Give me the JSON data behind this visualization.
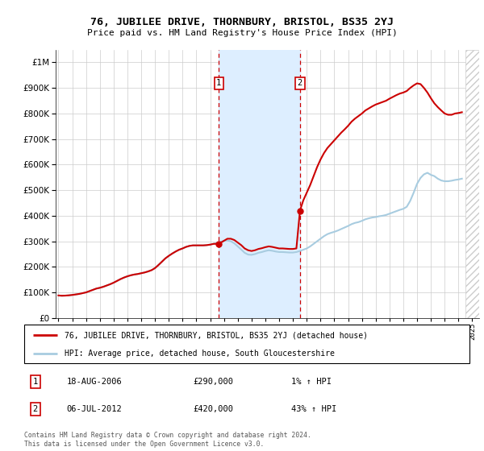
{
  "title": "76, JUBILEE DRIVE, THORNBURY, BRISTOL, BS35 2YJ",
  "subtitle": "Price paid vs. HM Land Registry's House Price Index (HPI)",
  "ytick_values": [
    0,
    100000,
    200000,
    300000,
    400000,
    500000,
    600000,
    700000,
    800000,
    900000,
    1000000
  ],
  "ylim": [
    0,
    1050000
  ],
  "xlim_start": 1994.8,
  "xlim_end": 2025.5,
  "background_color": "#ffffff",
  "plot_bg_color": "#ffffff",
  "grid_color": "#cccccc",
  "hpi_line_color": "#a8cce0",
  "price_line_color": "#cc0000",
  "shade_color": "#ddeeff",
  "transaction1_x": 2006.63,
  "transaction1_y": 290000,
  "transaction2_x": 2012.51,
  "transaction2_y": 420000,
  "legend_line1": "76, JUBILEE DRIVE, THORNBURY, BRISTOL, BS35 2YJ (detached house)",
  "legend_line2": "HPI: Average price, detached house, South Gloucestershire",
  "annot1_label": "1",
  "annot1_date": "18-AUG-2006",
  "annot1_price": "£290,000",
  "annot1_hpi": "1% ↑ HPI",
  "annot2_label": "2",
  "annot2_date": "06-JUL-2012",
  "annot2_price": "£420,000",
  "annot2_hpi": "43% ↑ HPI",
  "footer": "Contains HM Land Registry data © Crown copyright and database right 2024.\nThis data is licensed under the Open Government Licence v3.0.",
  "hpi_data_x": [
    1995.0,
    1995.25,
    1995.5,
    1995.75,
    1996.0,
    1996.25,
    1996.5,
    1996.75,
    1997.0,
    1997.25,
    1997.5,
    1997.75,
    1998.0,
    1998.25,
    1998.5,
    1998.75,
    1999.0,
    1999.25,
    1999.5,
    1999.75,
    2000.0,
    2000.25,
    2000.5,
    2000.75,
    2001.0,
    2001.25,
    2001.5,
    2001.75,
    2002.0,
    2002.25,
    2002.5,
    2002.75,
    2003.0,
    2003.25,
    2003.5,
    2003.75,
    2004.0,
    2004.25,
    2004.5,
    2004.75,
    2005.0,
    2005.25,
    2005.5,
    2005.75,
    2006.0,
    2006.25,
    2006.5,
    2006.75,
    2007.0,
    2007.25,
    2007.5,
    2007.75,
    2008.0,
    2008.25,
    2008.5,
    2008.75,
    2009.0,
    2009.25,
    2009.5,
    2009.75,
    2010.0,
    2010.25,
    2010.5,
    2010.75,
    2011.0,
    2011.25,
    2011.5,
    2011.75,
    2012.0,
    2012.25,
    2012.5,
    2012.75,
    2013.0,
    2013.25,
    2013.5,
    2013.75,
    2014.0,
    2014.25,
    2014.5,
    2014.75,
    2015.0,
    2015.25,
    2015.5,
    2015.75,
    2016.0,
    2016.25,
    2016.5,
    2016.75,
    2017.0,
    2017.25,
    2017.5,
    2017.75,
    2018.0,
    2018.25,
    2018.5,
    2018.75,
    2019.0,
    2019.25,
    2019.5,
    2019.75,
    2020.0,
    2020.25,
    2020.5,
    2020.75,
    2021.0,
    2021.25,
    2021.5,
    2021.75,
    2022.0,
    2022.25,
    2022.5,
    2022.75,
    2023.0,
    2023.25,
    2023.5,
    2023.75,
    2024.0,
    2024.25
  ],
  "hpi_data_y": [
    88000,
    87000,
    87500,
    88500,
    90000,
    92000,
    94000,
    97000,
    100000,
    105000,
    110000,
    115000,
    118000,
    122000,
    127000,
    132000,
    138000,
    145000,
    152000,
    158000,
    163000,
    167000,
    170000,
    172000,
    175000,
    178000,
    182000,
    187000,
    195000,
    207000,
    220000,
    233000,
    243000,
    252000,
    260000,
    267000,
    272000,
    278000,
    282000,
    284000,
    284000,
    284000,
    284000,
    285000,
    287000,
    290000,
    294000,
    298000,
    302000,
    303000,
    300000,
    292000,
    280000,
    268000,
    255000,
    248000,
    247000,
    250000,
    255000,
    258000,
    262000,
    265000,
    263000,
    260000,
    258000,
    258000,
    257000,
    256000,
    256000,
    258000,
    262000,
    267000,
    272000,
    280000,
    290000,
    300000,
    310000,
    320000,
    328000,
    333000,
    337000,
    342000,
    348000,
    354000,
    360000,
    367000,
    372000,
    375000,
    380000,
    386000,
    390000,
    393000,
    395000,
    398000,
    400000,
    403000,
    408000,
    413000,
    418000,
    423000,
    427000,
    435000,
    458000,
    490000,
    525000,
    548000,
    562000,
    568000,
    560000,
    555000,
    545000,
    538000,
    535000,
    535000,
    537000,
    540000,
    542000,
    545000
  ],
  "price_data_x": [
    1995.0,
    1995.25,
    1995.5,
    1995.75,
    1996.0,
    1996.25,
    1996.5,
    1996.75,
    1997.0,
    1997.25,
    1997.5,
    1997.75,
    1998.0,
    1998.25,
    1998.5,
    1998.75,
    1999.0,
    1999.25,
    1999.5,
    1999.75,
    2000.0,
    2000.25,
    2000.5,
    2000.75,
    2001.0,
    2001.25,
    2001.5,
    2001.75,
    2002.0,
    2002.25,
    2002.5,
    2002.75,
    2003.0,
    2003.25,
    2003.5,
    2003.75,
    2004.0,
    2004.25,
    2004.5,
    2004.75,
    2005.0,
    2005.25,
    2005.5,
    2005.75,
    2006.0,
    2006.25,
    2006.63,
    2006.75,
    2007.0,
    2007.25,
    2007.5,
    2007.75,
    2008.0,
    2008.25,
    2008.5,
    2008.75,
    2009.0,
    2009.25,
    2009.5,
    2009.75,
    2010.0,
    2010.25,
    2010.5,
    2010.75,
    2011.0,
    2011.25,
    2011.5,
    2011.75,
    2012.0,
    2012.25,
    2012.51,
    2012.75,
    2013.0,
    2013.25,
    2013.5,
    2013.75,
    2014.0,
    2014.25,
    2014.5,
    2014.75,
    2015.0,
    2015.25,
    2015.5,
    2015.75,
    2016.0,
    2016.25,
    2016.5,
    2016.75,
    2017.0,
    2017.25,
    2017.5,
    2017.75,
    2018.0,
    2018.25,
    2018.5,
    2018.75,
    2019.0,
    2019.25,
    2019.5,
    2019.75,
    2020.0,
    2020.25,
    2020.5,
    2020.75,
    2021.0,
    2021.25,
    2021.5,
    2021.75,
    2022.0,
    2022.25,
    2022.5,
    2022.75,
    2023.0,
    2023.25,
    2023.5,
    2023.75,
    2024.0,
    2024.25
  ],
  "price_data_y": [
    88000,
    87000,
    87500,
    88500,
    90000,
    92000,
    94000,
    97000,
    100000,
    105000,
    110000,
    115000,
    118000,
    122000,
    127000,
    132000,
    138000,
    145000,
    152000,
    158000,
    163000,
    167000,
    170000,
    172000,
    175000,
    178000,
    182000,
    187000,
    195000,
    207000,
    220000,
    233000,
    243000,
    252000,
    260000,
    267000,
    272000,
    278000,
    282000,
    284000,
    284000,
    284000,
    284000,
    285000,
    287000,
    290000,
    290000,
    294000,
    302000,
    310000,
    310000,
    305000,
    295000,
    285000,
    272000,
    265000,
    262000,
    265000,
    270000,
    273000,
    277000,
    280000,
    278000,
    275000,
    272000,
    272000,
    271000,
    270000,
    270000,
    272000,
    420000,
    460000,
    490000,
    520000,
    555000,
    590000,
    620000,
    645000,
    665000,
    680000,
    695000,
    710000,
    725000,
    738000,
    752000,
    768000,
    780000,
    790000,
    800000,
    812000,
    820000,
    828000,
    835000,
    840000,
    845000,
    850000,
    858000,
    865000,
    872000,
    878000,
    882000,
    888000,
    900000,
    910000,
    918000,
    915000,
    900000,
    882000,
    860000,
    840000,
    825000,
    812000,
    800000,
    795000,
    795000,
    800000,
    802000,
    805000
  ]
}
